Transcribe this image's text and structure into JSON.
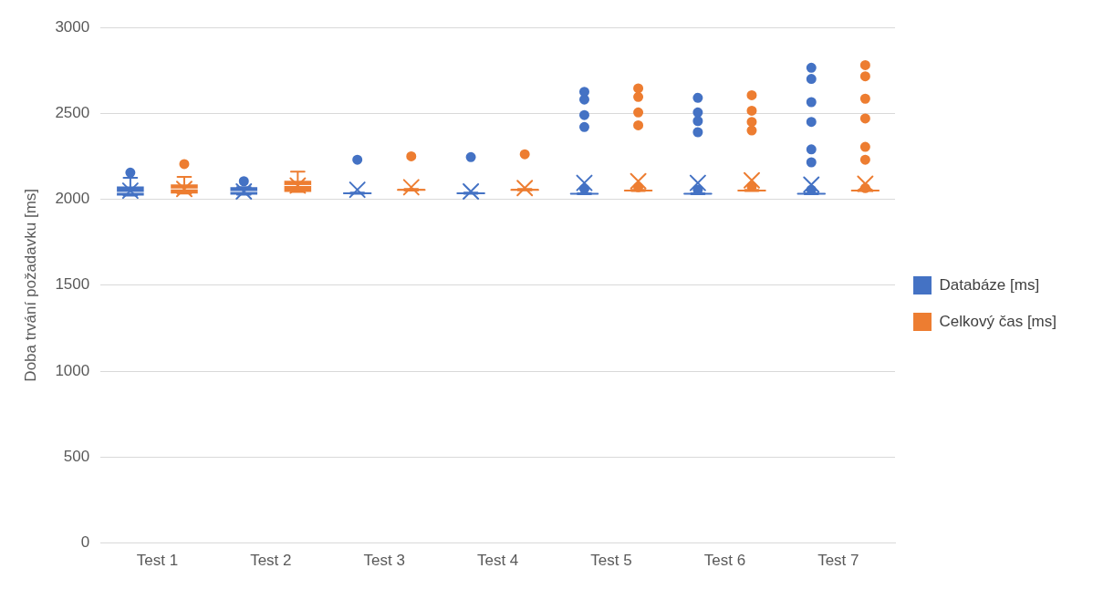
{
  "chart_data": {
    "type": "box",
    "ylabel": "Doba trvání požadavku [ms]",
    "categories": [
      "Test 1",
      "Test 2",
      "Test 3",
      "Test 4",
      "Test 5",
      "Test 6",
      "Test 7"
    ],
    "ylim": [
      0,
      3000
    ],
    "yticks": [
      0,
      500,
      1000,
      1500,
      2000,
      2500,
      3000
    ],
    "grid": "y",
    "legend": "right",
    "marker": "circle",
    "series": [
      {
        "name": "Databáze [ms]",
        "color": "#4472c4",
        "boxes": [
          {
            "low": 2022,
            "q1": 2022,
            "median": 2040,
            "q3": 2075,
            "high": 2125,
            "mean": 2050,
            "outliers": [
              2155
            ]
          },
          {
            "low": 2027,
            "q1": 2027,
            "median": 2045,
            "q3": 2070,
            "high": 2070,
            "mean": 2045,
            "outliers": [
              2105
            ]
          },
          {
            "low": 2032,
            "q1": 2032,
            "median": 2035,
            "q3": 2038,
            "high": 2038,
            "mean": 2055,
            "outliers": [
              2230
            ]
          },
          {
            "low": 2032,
            "q1": 2032,
            "median": 2035,
            "q3": 2038,
            "high": 2038,
            "mean": 2045,
            "outliers": [
              2245
            ]
          },
          {
            "low": 2030,
            "q1": 2030,
            "median": 2032,
            "q3": 2035,
            "high": 2035,
            "mean": 2095,
            "outliers": [
              2060,
              2420,
              2490,
              2580,
              2625
            ]
          },
          {
            "low": 2030,
            "q1": 2030,
            "median": 2032,
            "q3": 2035,
            "high": 2035,
            "mean": 2095,
            "outliers": [
              2055,
              2390,
              2455,
              2505,
              2590
            ]
          },
          {
            "low": 2030,
            "q1": 2030,
            "median": 2032,
            "q3": 2035,
            "high": 2035,
            "mean": 2085,
            "outliers": [
              2055,
              2215,
              2290,
              2450,
              2565,
              2700,
              2765
            ]
          }
        ]
      },
      {
        "name": "Celkový čas [ms]",
        "color": "#ed7d31",
        "boxes": [
          {
            "low": 2033,
            "q1": 2033,
            "median": 2060,
            "q3": 2087,
            "high": 2130,
            "mean": 2060,
            "outliers": [
              2205
            ]
          },
          {
            "low": 2043,
            "q1": 2043,
            "median": 2080,
            "q3": 2108,
            "high": 2160,
            "mean": 2080
          },
          {
            "low": 2050,
            "q1": 2050,
            "median": 2055,
            "q3": 2060,
            "high": 2060,
            "mean": 2070,
            "outliers": [
              2250
            ]
          },
          {
            "low": 2052,
            "q1": 2052,
            "median": 2055,
            "q3": 2060,
            "high": 2060,
            "mean": 2065,
            "outliers": [
              2262
            ]
          },
          {
            "low": 2048,
            "q1": 2048,
            "median": 2050,
            "q3": 2055,
            "high": 2055,
            "mean": 2105,
            "outliers": [
              2070,
              2430,
              2505,
              2595,
              2645
            ]
          },
          {
            "low": 2048,
            "q1": 2048,
            "median": 2050,
            "q3": 2055,
            "high": 2055,
            "mean": 2110,
            "outliers": [
              2075,
              2400,
              2450,
              2515,
              2605
            ]
          },
          {
            "low": 2048,
            "q1": 2048,
            "median": 2050,
            "q3": 2055,
            "high": 2055,
            "mean": 2090,
            "outliers": [
              2065,
              2230,
              2305,
              2470,
              2585,
              2715,
              2780
            ]
          }
        ]
      }
    ]
  }
}
